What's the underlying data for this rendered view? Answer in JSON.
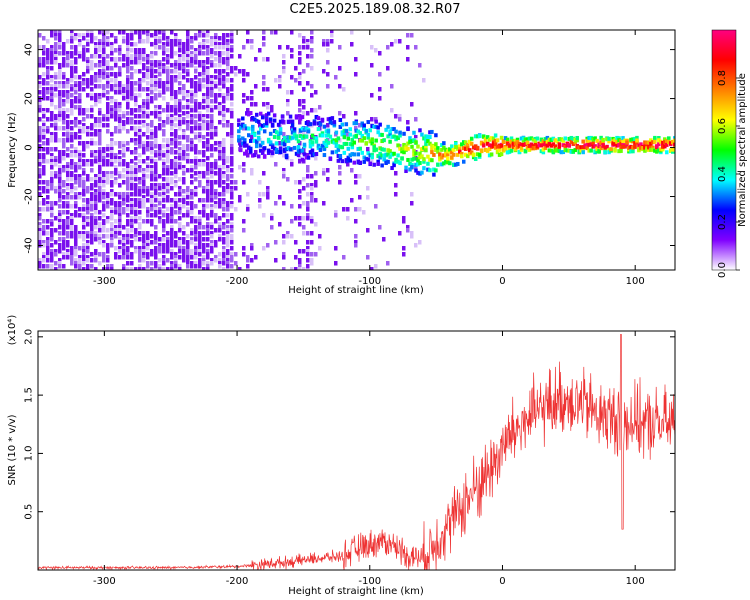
{
  "title": "C2E5.2025.189.08.32.R07",
  "chart_data": [
    {
      "type": "heatmap",
      "xlabel": "Height of straight line (km)",
      "ylabel": "Frequency (Hz)",
      "xlim": [
        -350,
        130
      ],
      "ylim": [
        -50,
        48
      ],
      "xticks": [
        -300,
        -200,
        -100,
        0,
        100
      ],
      "yticks": [
        -40,
        -20,
        0,
        20,
        40
      ],
      "grid": false,
      "colorbar": {
        "label": "Normalized spectral amplitude",
        "range": [
          0,
          1
        ],
        "ticks": [
          0.0,
          0.2,
          0.4,
          0.6,
          0.8
        ],
        "colormap": "rainbow",
        "stops": [
          "#ffffff",
          "#8000ff",
          "#0000ff",
          "#00ffff",
          "#00ff00",
          "#ffff00",
          "#ff8000",
          "#ff0000",
          "#ff0080"
        ]
      },
      "signal_track": {
        "x": [
          -200,
          -180,
          -160,
          -140,
          -120,
          -100,
          -80,
          -60,
          -50,
          -40,
          -30,
          -20,
          -10,
          0,
          20,
          40,
          60,
          80,
          100,
          130
        ],
        "y": [
          6,
          5,
          4,
          4,
          3,
          2,
          0,
          -2,
          -3,
          -3,
          -1,
          0,
          1,
          1,
          1,
          1,
          1,
          1,
          1,
          1
        ],
        "amplitude": [
          0.35,
          0.4,
          0.4,
          0.45,
          0.5,
          0.55,
          0.6,
          0.65,
          0.75,
          0.8,
          0.85,
          0.9,
          0.9,
          0.95,
          0.95,
          1.0,
          1.0,
          1.0,
          1.0,
          1.0
        ]
      }
    },
    {
      "type": "line",
      "xlabel": "Height of straight line (km)",
      "ylabel": "SNR (10 * v/v)",
      "y_multiplier_label": "(x10⁴)",
      "xlim": [
        -350,
        130
      ],
      "ylim": [
        0,
        2.05
      ],
      "xticks": [
        -300,
        -200,
        -100,
        0,
        100
      ],
      "yticks": [
        0.5,
        1.0,
        1.5,
        2.0
      ],
      "color": "#ee3333",
      "series": [
        {
          "x": [
            -350,
            -300,
            -250,
            -200,
            -180,
            -160,
            -140,
            -120,
            -110,
            -100,
            -90,
            -80,
            -70,
            -60,
            -50,
            -40,
            -30,
            -20,
            -10,
            0,
            10,
            20,
            30,
            40,
            50,
            60,
            70,
            80,
            88,
            90,
            92,
            100,
            110,
            120,
            130
          ],
          "y": [
            0.02,
            0.02,
            0.02,
            0.03,
            0.05,
            0.07,
            0.1,
            0.12,
            0.18,
            0.22,
            0.25,
            0.2,
            0.12,
            0.1,
            0.25,
            0.4,
            0.55,
            0.7,
            0.85,
            1.05,
            1.2,
            1.3,
            1.38,
            1.45,
            1.48,
            1.42,
            1.35,
            1.3,
            1.3,
            0.4,
            1.3,
            1.28,
            1.25,
            1.25,
            1.25
          ]
        }
      ]
    }
  ]
}
